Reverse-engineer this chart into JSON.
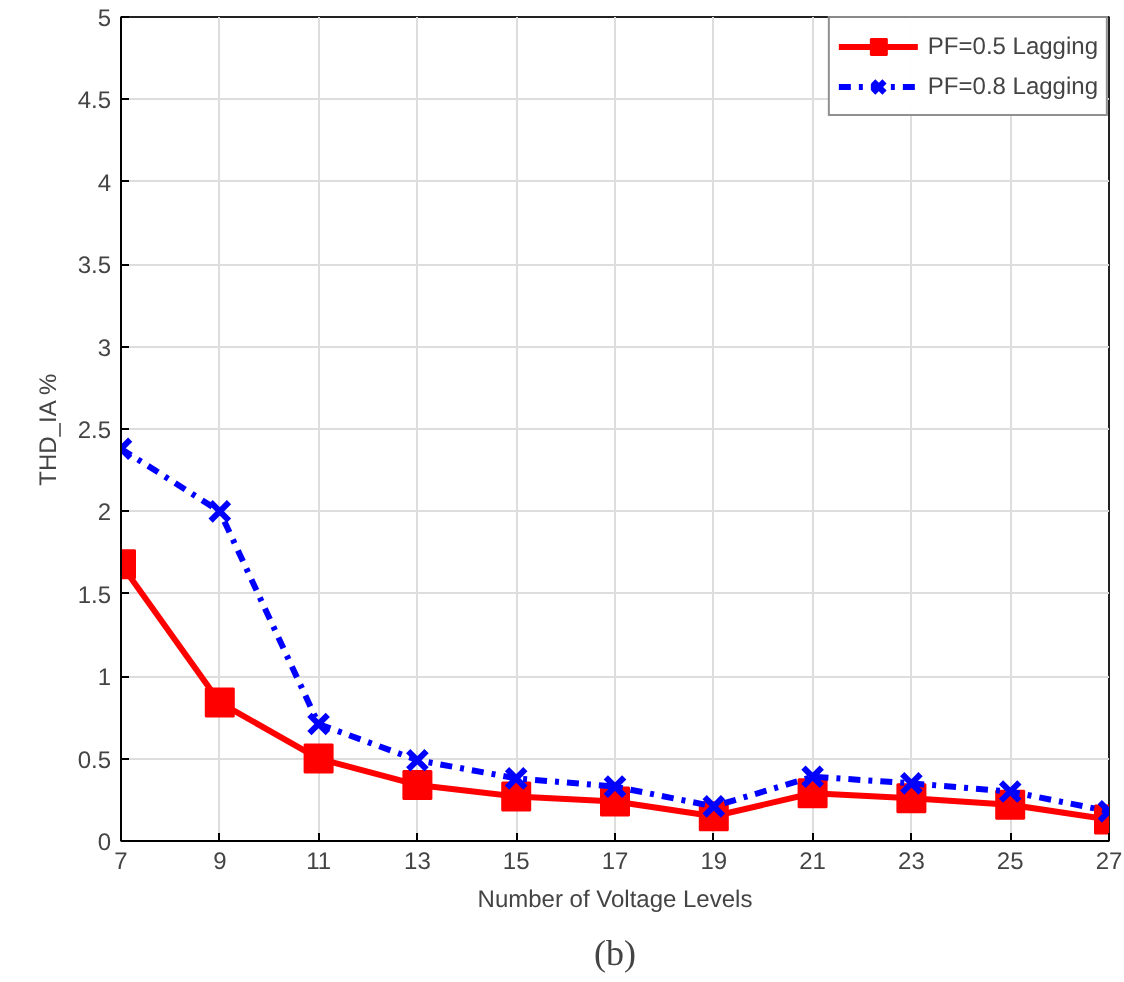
{
  "chart_data": {
    "type": "line",
    "xlabel": "Number of Voltage Levels",
    "ylabel": "THD_IA %",
    "x": [
      7,
      9,
      11,
      13,
      15,
      17,
      19,
      21,
      23,
      25,
      27
    ],
    "series": [
      {
        "name": "PF=0.5 Lagging",
        "color": "#ff0000",
        "marker": "square",
        "line_style": "solid",
        "values": [
          1.68,
          0.84,
          0.5,
          0.34,
          0.27,
          0.24,
          0.15,
          0.29,
          0.26,
          0.22,
          0.13
        ]
      },
      {
        "name": "PF=0.8 Lagging",
        "color": "#0000ff",
        "marker": "cross",
        "line_style": "dashdot",
        "values": [
          2.38,
          2.0,
          0.71,
          0.49,
          0.38,
          0.33,
          0.21,
          0.39,
          0.35,
          0.3,
          0.18
        ]
      }
    ],
    "xlim": [
      7,
      27
    ],
    "xticks": [
      7,
      9,
      11,
      13,
      15,
      17,
      19,
      21,
      23,
      25,
      27
    ],
    "ylim": [
      0,
      5
    ],
    "yticks": [
      0,
      0.5,
      1,
      1.5,
      2,
      2.5,
      3,
      3.5,
      4,
      4.5,
      5
    ],
    "grid": true,
    "legend": "top right",
    "annotations": [
      "(b)"
    ]
  }
}
